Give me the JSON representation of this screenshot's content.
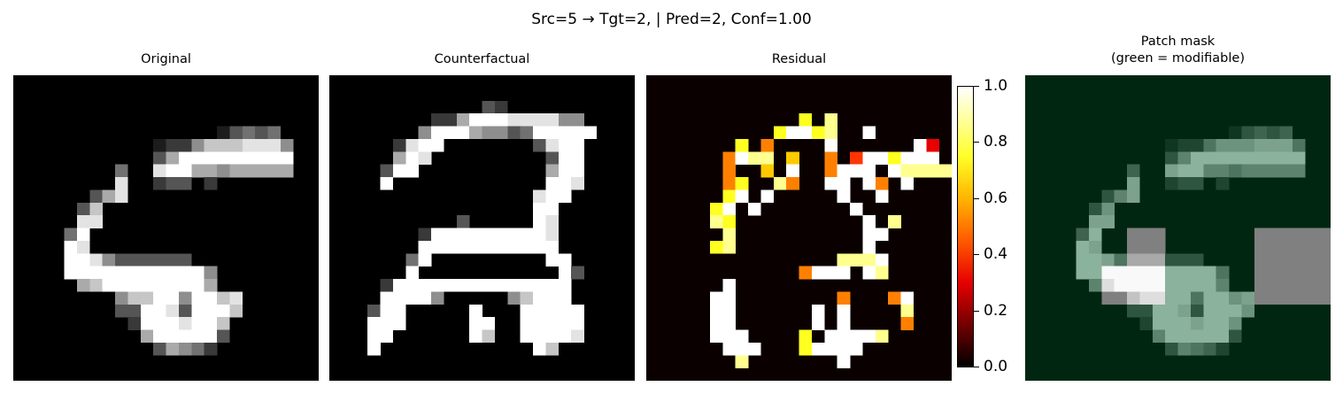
{
  "figure": {
    "suptitle": "Src=5 → Tgt=2, | Pred=2, Conf=1.00"
  },
  "chart_data": [
    {
      "type": "heatmap",
      "title": "Original",
      "colormap": "gray",
      "grid_size": [
        24,
        24
      ],
      "rows": [
        "........................",
        "........................",
        "........................",
        "........................",
        "................13434...",
        "...........12257778885..",
        "...........36999999999..",
        "........4..89966566666..",
        "........8..233.2........",
        "......368...............",
        ".....37.................",
        ".....88.................",
        "....49..................",
        "....98..................",
        "....9985333333..........",
        "....999999999995........",
        ".....67999999996........",
        "........5779959978......",
        "........3399839997......",
        ".........29998997.......",
        "..........6999993.......",
        "...........36542........",
        "........................",
        "........................"
      ]
    },
    {
      "type": "heatmap",
      "title": "Counterfactual",
      "colormap": "gray",
      "grid_size": [
        24,
        24
      ],
      "rows": [
        "........................",
        "........................",
        "............32..........",
        "........226999888855....",
        ".......59996553499999...",
        ".....2899.......3899....",
        ".....698.........399....",
        "....399..........699....",
        "....9............998....",
        "................899.....",
        "................99......",
        "..........3.....98......",
        ".......29999999998......",
        ".......99999999999......",
        "......49.........99.....",
        "......9...........93....",
        "....299999999999999.....",
        "....99995.....57999.....",
        "...399.....9...99999....",
        "...999.....99..99999....",
        "...99......97..99998....",
        "...9............97......",
        "........................",
        "........................"
      ]
    },
    {
      "type": "heatmap",
      "title": "Residual",
      "colormap": "hot",
      "grid_size": [
        24,
        24
      ],
      "rows": [
        "........................",
        "........................",
        "........................",
        "............7.8.........",
        "..........79978..9......",
        ".......7.5....9......93.",
        "......5988.6..5.4997999.",
        "......5..6.9..5999.98888",
        "......57..85..99.95.9...",
        "......79.9.....9..9.....",
        ".....79.9.......9.......",
        ".....87..........9.8....",
        "......8..........99.....",
        ".....78..........9......",
        "...............8889.....",
        "............5999.98.....",
        "......9.................",
        ".....99........5...59...",
        ".....99......9.9....8...",
        ".....99......9.9....5...",
        ".....999....7.99998.....",
        "......999...79999.......",
        ".......8.......9........",
        "........................"
      ],
      "colorbar": {
        "ticks": [
          "0.0",
          "0.2",
          "0.4",
          "0.6",
          "0.8",
          "1.0"
        ],
        "range": [
          0,
          1
        ]
      }
    },
    {
      "type": "heatmap",
      "title": "Patch mask\n(green = modifiable)",
      "background_color": "#002612",
      "highlight_color": "#8bb29c",
      "gray_patch_color": "#808080",
      "rows": [
        "........................",
        "........................",
        "........................",
        "........................",
        "................13434...",
        "...........12257778885..",
        "...........36999999999..",
        "........4..89966566666..",
        "........8..233.2........",
        "......368...............",
        ".....37.................",
        ".....88.................",
        "....49..................",
        "....98..................",
        "....9985333333..........",
        "....999999999995........",
        ".....67999999996........",
        "........5779959978......",
        "........3399839997......",
        ".........29998997.......",
        "..........6999993.......",
        "...........36542........",
        "........................",
        "........................"
      ],
      "unmasked_patches": [
        {
          "row": 12,
          "col": 8,
          "height": 4,
          "width": 3
        },
        {
          "row": 15,
          "col": 6,
          "height": 3,
          "width": 5
        },
        {
          "row": 12,
          "col": 18,
          "height": 6,
          "width": 6
        }
      ]
    }
  ]
}
